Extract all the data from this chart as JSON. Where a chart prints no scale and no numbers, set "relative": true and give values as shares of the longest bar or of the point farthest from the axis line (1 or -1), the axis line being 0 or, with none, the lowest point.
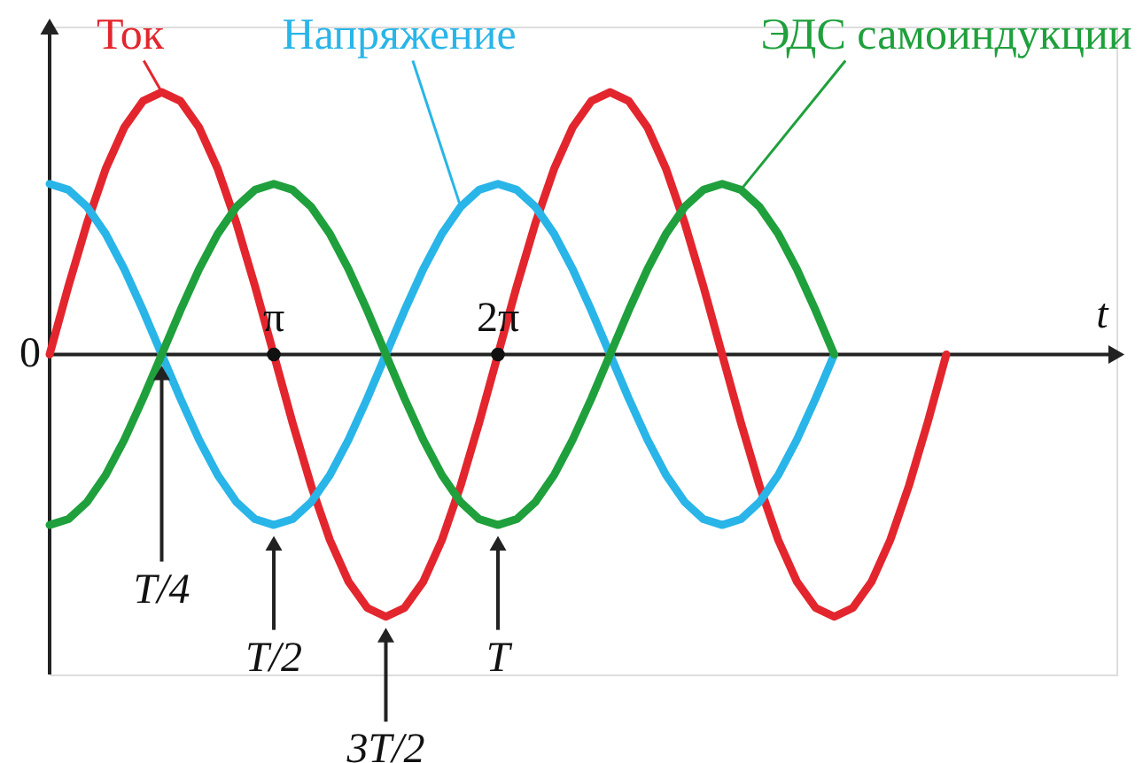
{
  "chart_data": {
    "type": "line",
    "relative": true,
    "xlabel": "t",
    "xlim": [
      0,
      14.95
    ],
    "xticks": [
      {
        "value": 3.142,
        "label": "π"
      },
      {
        "value": 6.283,
        "label": "2π"
      }
    ],
    "grid": false,
    "marker": "none",
    "line_style": "solid",
    "series": [
      {
        "name": "Ток",
        "color": "#e3262e",
        "x": [
          0,
          0.262,
          0.524,
          0.785,
          1.047,
          1.309,
          1.571,
          1.833,
          2.094,
          2.356,
          2.618,
          2.88,
          3.142,
          3.403,
          3.665,
          3.927,
          4.189,
          4.451,
          4.712,
          4.974,
          5.236,
          5.498,
          5.76,
          6.021,
          6.283,
          6.545,
          6.807,
          7.069,
          7.33,
          7.592,
          7.854,
          8.116,
          8.378,
          8.639,
          8.901,
          9.163,
          9.425,
          9.687,
          9.948,
          10.21,
          10.472,
          10.734,
          10.996,
          11.257,
          11.519,
          11.781,
          12.043,
          12.305,
          12.566
        ],
        "values": [
          0,
          0.259,
          0.5,
          0.707,
          0.866,
          0.966,
          1,
          0.966,
          0.866,
          0.707,
          0.5,
          0.259,
          0,
          -0.259,
          -0.5,
          -0.707,
          -0.866,
          -0.966,
          -1,
          -0.966,
          -0.866,
          -0.707,
          -0.5,
          -0.259,
          0,
          0.259,
          0.5,
          0.707,
          0.866,
          0.966,
          1,
          0.966,
          0.866,
          0.707,
          0.5,
          0.259,
          0,
          -0.259,
          -0.5,
          -0.707,
          -0.866,
          -0.966,
          -1,
          -0.966,
          -0.866,
          -0.707,
          -0.5,
          -0.259,
          0
        ]
      },
      {
        "name": "Напряжение",
        "color": "#29b5e8",
        "x": [
          0,
          0.262,
          0.524,
          0.785,
          1.047,
          1.309,
          1.571,
          1.833,
          2.094,
          2.356,
          2.618,
          2.88,
          3.142,
          3.403,
          3.665,
          3.927,
          4.189,
          4.451,
          4.712,
          4.974,
          5.236,
          5.498,
          5.76,
          6.021,
          6.283,
          6.545,
          6.807,
          7.069,
          7.33,
          7.592,
          7.854,
          8.116,
          8.378,
          8.639,
          8.901,
          9.163,
          9.425,
          9.687,
          9.948,
          10.21,
          10.472,
          10.734,
          10.996
        ],
        "values": [
          0.65,
          0.628,
          0.563,
          0.46,
          0.325,
          0.168,
          0,
          -0.168,
          -0.325,
          -0.46,
          -0.563,
          -0.628,
          -0.65,
          -0.628,
          -0.563,
          -0.46,
          -0.325,
          -0.168,
          0,
          0.168,
          0.325,
          0.46,
          0.563,
          0.628,
          0.65,
          0.628,
          0.563,
          0.46,
          0.325,
          0.168,
          0,
          -0.168,
          -0.325,
          -0.46,
          -0.563,
          -0.628,
          -0.65,
          -0.628,
          -0.563,
          -0.46,
          -0.325,
          -0.168,
          0
        ]
      },
      {
        "name": "ЭДС самоиндукции",
        "color": "#1fa03c",
        "x": [
          0,
          0.262,
          0.524,
          0.785,
          1.047,
          1.309,
          1.571,
          1.833,
          2.094,
          2.356,
          2.618,
          2.88,
          3.142,
          3.403,
          3.665,
          3.927,
          4.189,
          4.451,
          4.712,
          4.974,
          5.236,
          5.498,
          5.76,
          6.021,
          6.283,
          6.545,
          6.807,
          7.069,
          7.33,
          7.592,
          7.854,
          8.116,
          8.378,
          8.639,
          8.901,
          9.163,
          9.425,
          9.687,
          9.948,
          10.21,
          10.472,
          10.734,
          10.996
        ],
        "values": [
          -0.65,
          -0.628,
          -0.563,
          -0.46,
          -0.325,
          -0.168,
          0,
          0.168,
          0.325,
          0.46,
          0.563,
          0.628,
          0.65,
          0.628,
          0.563,
          0.46,
          0.325,
          0.168,
          0,
          -0.168,
          -0.325,
          -0.46,
          -0.563,
          -0.628,
          -0.65,
          -0.628,
          -0.563,
          -0.46,
          -0.325,
          -0.168,
          0,
          0.168,
          0.325,
          0.46,
          0.563,
          0.628,
          0.65,
          0.628,
          0.563,
          0.46,
          0.325,
          0.168,
          0
        ]
      }
    ],
    "annotations": [
      {
        "text": "0",
        "x": 0,
        "y": 0
      },
      "T/4",
      {
        "text": "T/2",
        "x": 3.142,
        "y": -0.65
      },
      {
        "text": "3T/2",
        "x": 4.712,
        "y": -1
      },
      {
        "text": "T",
        "x": 6.283,
        "y": -0.65
      }
    ]
  }
}
